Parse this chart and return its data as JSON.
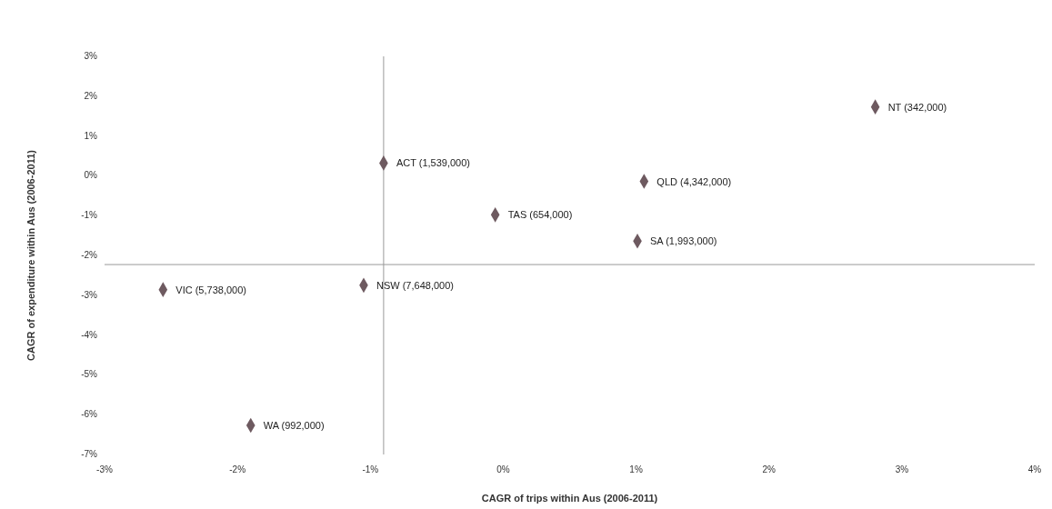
{
  "chart_data": {
    "type": "scatter",
    "xlabel": "CAGR of trips within Aus (2006-2011)",
    "ylabel": "CAGR of expenditure within Aus  (2006-2011)",
    "series": [
      {
        "color": "#6e5a60",
        "x": [
          2.8,
          1.06,
          1.01,
          -0.06,
          -0.9,
          -1.05,
          -2.56,
          -1.9
        ],
        "values": [
          1.73,
          -0.14,
          -1.64,
          -0.98,
          0.32,
          -2.75,
          -2.86,
          -6.27
        ]
      }
    ],
    "marker": "diamond",
    "grid": false,
    "xlim": [
      -3,
      4
    ],
    "xticks": [
      {
        "value": -3,
        "label": "-3%"
      },
      {
        "value": -2,
        "label": "-2%"
      },
      {
        "value": -1,
        "label": "-1%"
      },
      {
        "value": 0,
        "label": "0%"
      },
      {
        "value": 1,
        "label": "1%"
      },
      {
        "value": 2,
        "label": "2%"
      },
      {
        "value": 3,
        "label": "3%"
      },
      {
        "value": 4,
        "label": "4%"
      }
    ],
    "ylim": [
      -7,
      3
    ],
    "yticks": [
      {
        "value": 3,
        "label": "3%"
      },
      {
        "value": 2,
        "label": "2%"
      },
      {
        "value": 1,
        "label": "1%"
      },
      {
        "value": 0,
        "label": "0%"
      },
      {
        "value": -1,
        "label": "-1%"
      },
      {
        "value": -2,
        "label": "-2%"
      },
      {
        "value": -3,
        "label": "-3%"
      },
      {
        "value": -4,
        "label": "-4%"
      },
      {
        "value": -5,
        "label": "-5%"
      },
      {
        "value": -6,
        "label": "-6%"
      },
      {
        "value": -7,
        "label": "-7%"
      }
    ],
    "ref_lines": [
      {
        "axis": "x",
        "value": -0.9,
        "color": "#999999"
      },
      {
        "axis": "y",
        "value": -2.23,
        "color": "#999999"
      }
    ],
    "annotations": [
      {
        "text": "NT (342,000)",
        "x": 2.8,
        "y": 1.73
      },
      {
        "text": "QLD (4,342,000)",
        "x": 1.06,
        "y": -0.14
      },
      {
        "text": "SA (1,993,000)",
        "x": 1.01,
        "y": -1.64
      },
      {
        "text": "TAS (654,000)",
        "x": -0.06,
        "y": -0.98
      },
      {
        "text": "ACT (1,539,000)",
        "x": -0.9,
        "y": 0.32
      },
      {
        "text": "NSW (7,648,000)",
        "x": -1.05,
        "y": -2.75
      },
      {
        "text": "VIC (5,738,000)",
        "x": -2.56,
        "y": -2.86
      },
      {
        "text": "WA (992,000)",
        "x": -1.9,
        "y": -6.27
      }
    ]
  }
}
